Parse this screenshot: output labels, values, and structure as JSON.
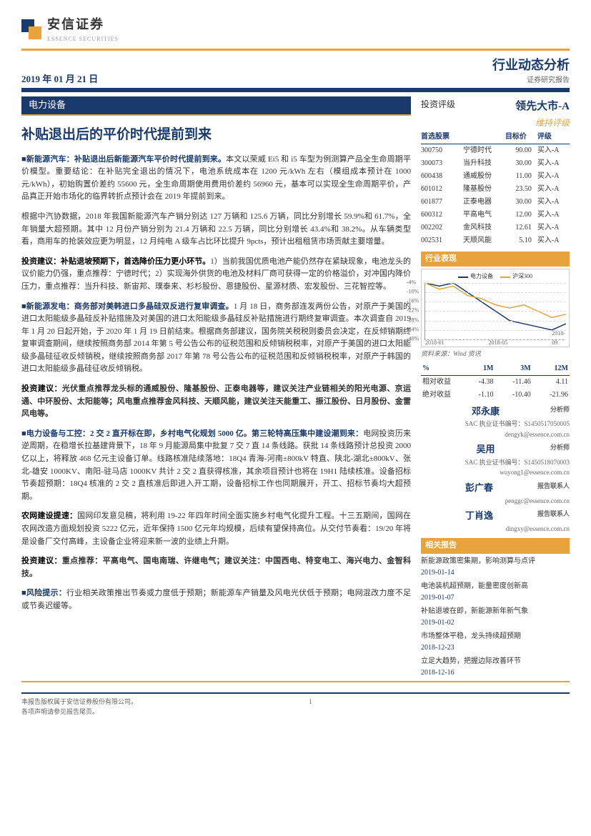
{
  "header": {
    "company_cn": "安信证券",
    "company_en": "ESSENCE SECURITIES",
    "date": "2019 年 01 月 21 日",
    "doc_type": "行业动态分析",
    "doc_subtype": "证券研究报告",
    "sector": "电力设备",
    "title": "补贴退出后的平价时代提前到来"
  },
  "body": {
    "p1_lead": "■新能源汽车：补贴退出后新能源汽车平价时代提前到来。",
    "p1": "本文以荣威 Ei5 和 i5 车型为例测算产品全生命周期平价模型。重要结论：在补贴完全退出的情况下，电池系统成本在 1200 元/kWh 左右（模组成本预计在 1000 元/kWh），初始购置价差约 55600 元，全生命周期使用费用价差约 56960 元，基本可以实现全生命周期平价，产品真正开始市场化的临界转折点预计会在 2019 年提前到来。",
    "p2": "根据中汽协数据，2018 年我国新能源汽车产销分别达 127 万辆和 125.6 万辆，同比分别增长 59.9%和 61.7%，全年销量大超预期。其中 12 月份产销分别为 21.4 万辆和 22.5 万辆，同比分别增长 43.4%和 38.2%。从车辆类型看，商用车的抢装效应更为明显，12 月纯电 A 级车占比环比提升 9pcts，预计出租租赁市场贡献主要增量。",
    "p3_lead": "投资建议：补贴退坡预期下，首选降价压力更小环节。",
    "p3": "1）当前我国优质电池产能仍然存在紧缺现象，电池龙头的议价能力仍强，重点推荐：宁德时代；2）实现海外供货的电池及材料厂商可获得一定的价格溢价，对冲国内降价压力，重点推荐：当升科技、新宙邦、璞泰来、杉杉股份、恩捷股份、星源材质、宏发股份、三花智控等。",
    "p4_lead": "■新能源发电：商务部对美韩进口多晶硅双反进行复审调查。",
    "p4": "1 月 18 日，商务部连发两份公告，对原产于美国的进口太阳能级多晶硅反补贴措施及对美国的进口太阳能级多晶硅反补贴措施进行期终复审调查。本次调查自 2019 年 1 月 20 日起开始，于 2020 年 1 月 19 日前结束。根据商务部建议，国务院关税税则委员会决定，在反倾销期终复审调查期间，继续按照商务部 2014 年第 5 号公告公布的征税范围和反倾销税税率，对原产于美国的进口太阳能级多晶硅征收反倾销税，继续按照商务部 2017 年第 78 号公告公布的征税范围和反倾销税税率，对原产于韩国的进口太阳能级多晶硅征收反倾销税。",
    "p5_lead": "投资建议：",
    "p5": "光伏重点推荐龙头标的通威股份、隆基股份、正泰电器等，建议关注产业链相关的阳光电源、京运通、中环股份、太阳能等；风电重点推荐金风科技、天顺风能，建议关注天能重工、振江股份、日月股份、金雷风电等。",
    "p6_lead": "■电力设备与工控：2 交 2 直开标在即，乡村电气化规划 5000 亿。第三轮特高压集中建设潮到来：",
    "p6": "电网投资历来逆周期，在稳增长拉基建背景下，18 年 9 月能源局集中批复 7 交 7 直 14 条线路。获批 14 条线路预计总投资 2000 亿以上，将释放 468 亿元主设备订单。线路核准陆续落地：18Q4 青海-河南±800kV 特直、陕北-湖北±800kV、张北-雄安 1000KV、南阳-驻马店 1000KV 共计 2 交 2 直获得核准，其余项目预计也将在 19H1 陆续核准。设备招标节奏超预期：18Q4 核准的 2 交 2 直核准后即进入开工期，设备招标工作也同期展开，开工、招标节奏均大超预期。",
    "p7_lead": "农网建设提速：",
    "p7": "国网印发意见稿，将利用 19-22 年四年时间全面实施乡村电气化提升工程。十三五期间，国网在农网改造方面规划投资 5222 亿元，近年保持 1500 亿元年均规模，后续有望保持高位。从交付节奏看：19/20 年将是设备厂交付高峰，主设备企业将迎来新一波的业绩上升期。",
    "p8_lead": "投资建议：",
    "p8": "重点推荐：平高电气、国电南瑞、许继电气；建议关注：中国西电、特变电工、海兴电力、金智科技。",
    "p9_lead": "■风险提示：",
    "p9": "行业相关政策推出节奏或力度低于预期；新能源车产销量及风电光伏低于预期；电网混改力度不足或节奏迟缓等。"
  },
  "sidebar": {
    "rating_label": "投资评级",
    "rating_value": "领先大市-A",
    "rating_sub": "维持评级",
    "stocks_title": "首选股票",
    "stocks_hdr": [
      "首选股票",
      "",
      "目标价",
      "评级"
    ],
    "stocks": [
      {
        "code": "300750",
        "name": "宁德时代",
        "tgt": "90.00",
        "r": "买入-A"
      },
      {
        "code": "300073",
        "name": "当升科技",
        "tgt": "30.00",
        "r": "买入-A"
      },
      {
        "code": "600438",
        "name": "通威股份",
        "tgt": "11.00",
        "r": "买入-A"
      },
      {
        "code": "601012",
        "name": "隆基股份",
        "tgt": "23.50",
        "r": "买入-A"
      },
      {
        "code": "601877",
        "name": "正泰电器",
        "tgt": "30.00",
        "r": "买入-A"
      },
      {
        "code": "600312",
        "name": "平高电气",
        "tgt": "12.00",
        "r": "买入-A"
      },
      {
        "code": "002202",
        "name": "金风科技",
        "tgt": "12.61",
        "r": "买入-A"
      },
      {
        "code": "002531",
        "name": "天顺风能",
        "tgt": "5.10",
        "r": "买入-A"
      }
    ],
    "perf_title": "行业表现",
    "chart": {
      "type": "line",
      "series": [
        {
          "name": "电力设备",
          "color": "#1a3a6e",
          "points": [
            [
              0,
              -4
            ],
            [
              10,
              -6
            ],
            [
              20,
              -4
            ],
            [
              30,
              -10
            ],
            [
              40,
              -16
            ],
            [
              50,
              -22
            ],
            [
              60,
              -28
            ],
            [
              70,
              -30
            ],
            [
              80,
              -32
            ],
            [
              90,
              -34
            ],
            [
              100,
              -30
            ]
          ]
        },
        {
          "name": "沪深300",
          "color": "#e8a33d",
          "points": [
            [
              0,
              -4
            ],
            [
              10,
              -8
            ],
            [
              20,
              -6
            ],
            [
              30,
              -12
            ],
            [
              40,
              -14
            ],
            [
              50,
              -18
            ],
            [
              60,
              -20
            ],
            [
              70,
              -18
            ],
            [
              80,
              -22
            ],
            [
              90,
              -26
            ],
            [
              100,
              -24
            ]
          ]
        }
      ],
      "ylim": [
        -40,
        -4
      ],
      "yticks": [
        -4,
        -10,
        -16,
        -22,
        -28,
        -34,
        -40
      ],
      "xticks": [
        "2018-01",
        "2018-05",
        "2018-09"
      ],
      "grid_color": "#dddddd",
      "background": "#ffffff"
    },
    "chart_src": "资料来源：Wind 资讯",
    "perf_table": {
      "cols": [
        "%",
        "1M",
        "3M",
        "12M"
      ],
      "rows": [
        [
          "相对收益",
          "-4.38",
          "-11.46",
          "4.11"
        ],
        [
          "绝对收益",
          "-1.10",
          "-10.40",
          "-21.96"
        ]
      ]
    },
    "analysts": [
      {
        "name": "邓永康",
        "role": "分析师",
        "lic": "SAC 执业证书编号：S1450517050005",
        "email": "dengyk@essence.com.cn"
      },
      {
        "name": "吴用",
        "role": "分析师",
        "lic": "SAC 执业证书编号：S1450518070003",
        "email": "wuyong1@essence.com.cn"
      },
      {
        "name": "彭广春",
        "role": "报告联系人",
        "lic": "",
        "email": "penggc@essence.com.cn"
      },
      {
        "name": "丁肖逸",
        "role": "报告联系人",
        "lic": "",
        "email": "dingxy@essence.com.cn"
      }
    ],
    "reports_title": "相关报告",
    "reports": [
      {
        "t": "新能源政策密集期，影响测算与点评",
        "d": "2019-01-14"
      },
      {
        "t": "电池装机超预期，能量密度创新高",
        "d": "2019-01-07"
      },
      {
        "t": "补贴退坡在即，新能源新年新气象",
        "d": "2019-01-02"
      },
      {
        "t": "市场整体平稳，龙头持续超预期",
        "d": "2018-12-23"
      },
      {
        "t": "立足大趋势，把握边际改善环节",
        "d": "2018-12-16"
      }
    ]
  },
  "footer": {
    "l1": "本报告版权属于安信证券股份有限公司。",
    "l2": "各项声明请参见报告尾页。",
    "page": "1"
  }
}
